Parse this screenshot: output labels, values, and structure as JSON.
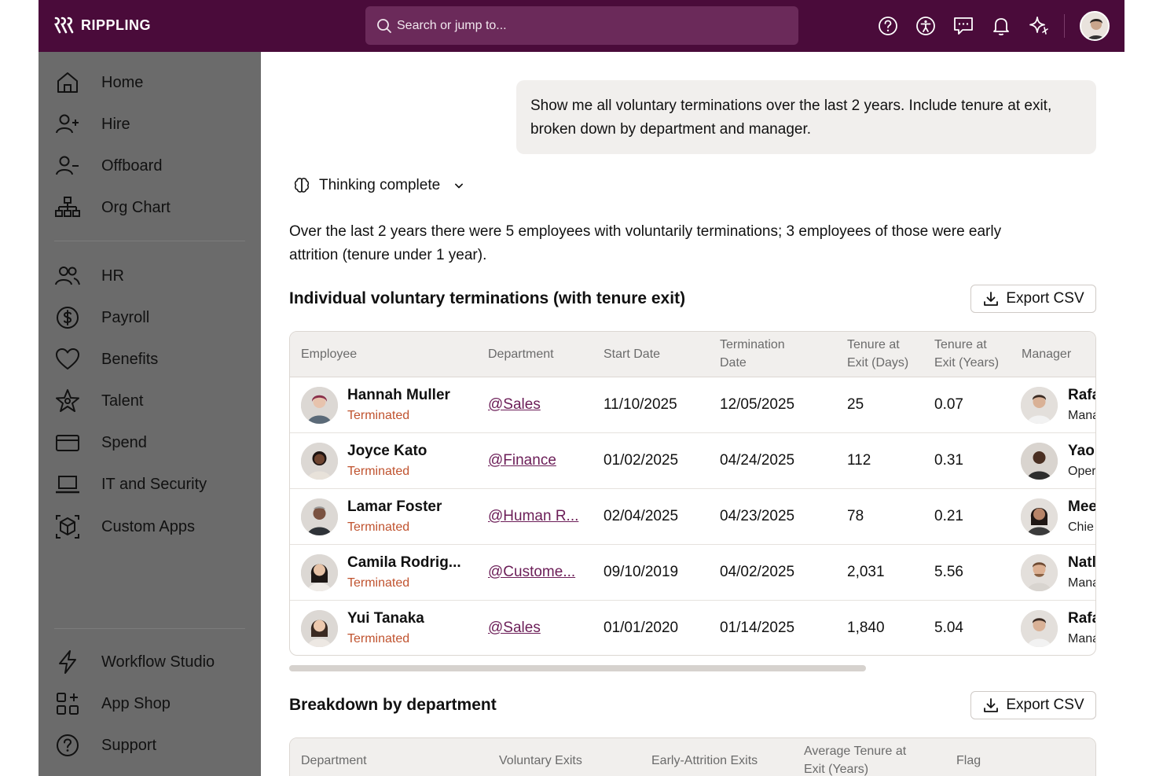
{
  "app": {
    "name": "RIPPLING"
  },
  "search": {
    "placeholder": "Search or jump to..."
  },
  "top_icons": [
    "help-icon",
    "accessibility-icon",
    "feedback-icon",
    "bell-icon",
    "ai-sparkle-icon"
  ],
  "sidebar": {
    "primary": [
      {
        "label": "Home",
        "icon": "home-icon"
      },
      {
        "label": "Hire",
        "icon": "user-add-icon"
      },
      {
        "label": "Offboard",
        "icon": "user-remove-icon"
      },
      {
        "label": "Org Chart",
        "icon": "org-chart-icon"
      }
    ],
    "apps": [
      {
        "label": "HR",
        "icon": "people-icon"
      },
      {
        "label": "Payroll",
        "icon": "dollar-icon"
      },
      {
        "label": "Benefits",
        "icon": "heart-icon"
      },
      {
        "label": "Talent",
        "icon": "star-icon"
      },
      {
        "label": "Spend",
        "icon": "card-icon"
      },
      {
        "label": "IT and Security",
        "icon": "laptop-icon"
      },
      {
        "label": "Custom Apps",
        "icon": "cube-icon"
      }
    ],
    "bottom": [
      {
        "label": "Workflow Studio",
        "icon": "bolt-icon"
      },
      {
        "label": "App Shop",
        "icon": "grid-plus-icon"
      },
      {
        "label": "Support",
        "icon": "help-circle-icon"
      }
    ]
  },
  "chat": {
    "prompt": "Show me all voluntary terminations over the last 2 years. Include tenure at exit, broken down by department and manager.",
    "thinking": "Thinking complete",
    "summary": "Over the last 2 years there were 5 employees with voluntarily terminations; 3 employees of those were early attrition (tenure under 1 year)."
  },
  "terminations": {
    "title": "Individual voluntary terminations (with tenure exit)",
    "export_label": "Export CSV",
    "headers": {
      "employee": "Employee",
      "department": "Department",
      "start": "Start Date",
      "term_1": "Termination",
      "term_2": "Date",
      "days_1": "Tenure at",
      "days_2": "Exit (Days)",
      "years_1": "Tenure at",
      "years_2": "Exit (Years)",
      "manager": "Manager"
    },
    "rows": [
      {
        "name": "Hannah Muller",
        "status": "Terminated",
        "department": "@Sales",
        "start": "11/10/2025",
        "end": "12/05/2025",
        "days": "25",
        "years": "0.07",
        "manager": "Rafa",
        "manager_title": "Mana"
      },
      {
        "name": "Joyce Kato",
        "status": "Terminated",
        "department": "@Finance",
        "start": "01/02/2025",
        "end": "04/24/2025",
        "days": "112",
        "years": "0.31",
        "manager": "Yao",
        "manager_title": "Oper"
      },
      {
        "name": "Lamar Foster",
        "status": "Terminated",
        "department": "@Human R...",
        "start": "02/04/2025",
        "end": "04/23/2025",
        "days": "78",
        "years": "0.21",
        "manager": "Mee",
        "manager_title": "Chie"
      },
      {
        "name": "Camila Rodrig...",
        "status": "Terminated",
        "department": "@Custome...",
        "start": "09/10/2019",
        "end": "04/02/2025",
        "days": "2,031",
        "years": "5.56",
        "manager": "Natl",
        "manager_title": "Mana"
      },
      {
        "name": "Yui Tanaka",
        "status": "Terminated",
        "department": "@Sales",
        "start": "01/01/2020",
        "end": "01/14/2025",
        "days": "1,840",
        "years": "5.04",
        "manager": "Rafa",
        "manager_title": "Mana"
      }
    ]
  },
  "breakdown": {
    "title": "Breakdown by department",
    "export_label": "Export CSV",
    "headers": {
      "department": "Department",
      "voluntary": "Voluntary Exits",
      "early": "Early-Attrition Exits",
      "avg_1": "Average Tenure at",
      "avg_2": "Exit (Years)",
      "flag": "Flag"
    }
  },
  "colors": {
    "topbar": "#4a0b3a",
    "sidebar": "#6b6b6b",
    "accent": "#6b1d57",
    "terminated": "#c0532f"
  }
}
